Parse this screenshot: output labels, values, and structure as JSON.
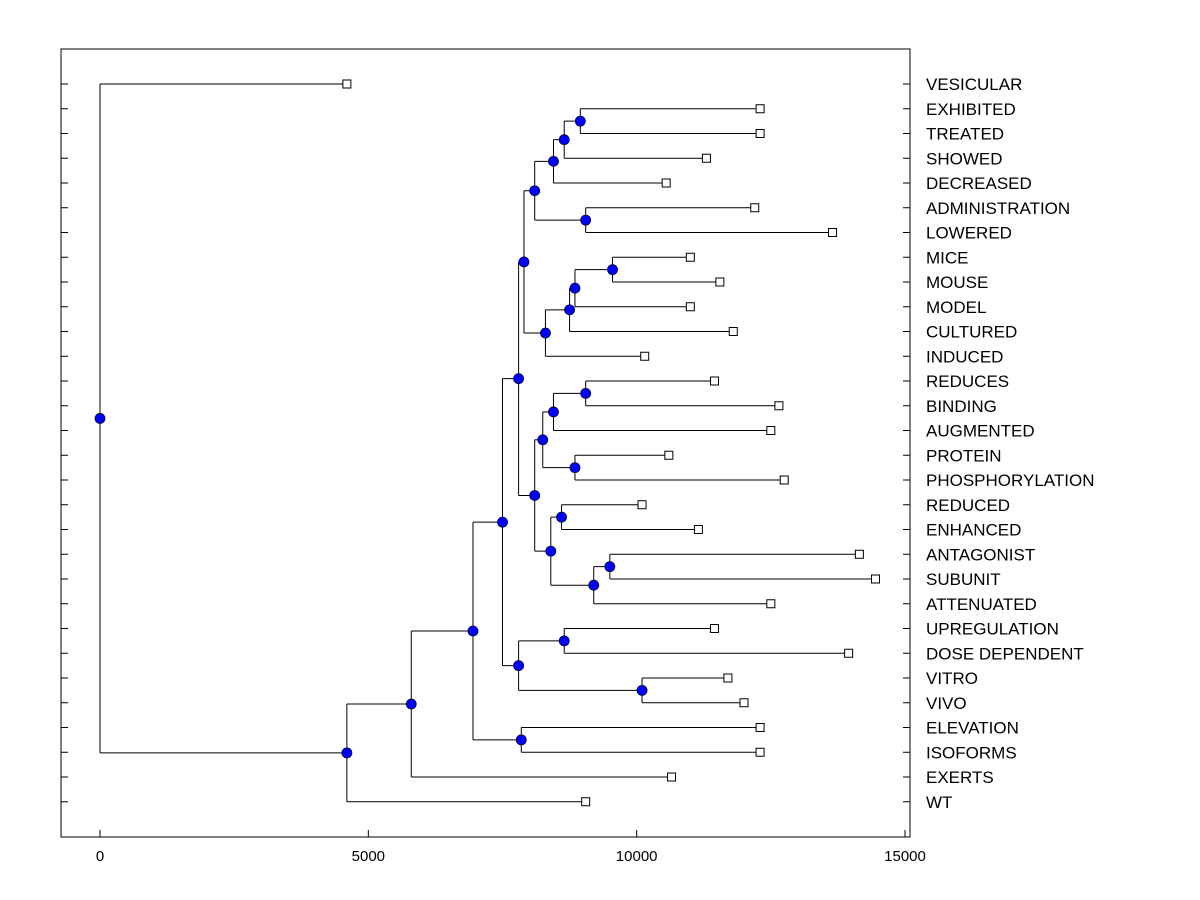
{
  "chart_data": {
    "type": "dendrogram",
    "orientation": "horizontal-left-root",
    "x_axis": {
      "range": [
        -700,
        15150
      ],
      "ticks": [
        0,
        5000,
        10000,
        15000
      ],
      "tick_labels": [
        "0",
        "5000",
        "10000",
        "15000"
      ]
    },
    "leaves": [
      {
        "label": "VESICULAR",
        "x": 4600
      },
      {
        "label": "EXHIBITED",
        "x": 12300
      },
      {
        "label": "TREATED",
        "x": 12300
      },
      {
        "label": "SHOWED",
        "x": 11300
      },
      {
        "label": "DECREASED",
        "x": 10550
      },
      {
        "label": "ADMINISTRATION",
        "x": 12200
      },
      {
        "label": "LOWERED",
        "x": 13650
      },
      {
        "label": "MICE",
        "x": 11000
      },
      {
        "label": "MOUSE",
        "x": 11550
      },
      {
        "label": "MODEL",
        "x": 11000
      },
      {
        "label": "CULTURED",
        "x": 11800
      },
      {
        "label": "INDUCED",
        "x": 10150
      },
      {
        "label": "REDUCES",
        "x": 11450
      },
      {
        "label": "BINDING",
        "x": 12650
      },
      {
        "label": "AUGMENTED",
        "x": 12500
      },
      {
        "label": "PROTEIN",
        "x": 10600
      },
      {
        "label": "PHOSPHORYLATION",
        "x": 12750
      },
      {
        "label": "REDUCED",
        "x": 10100
      },
      {
        "label": "ENHANCED",
        "x": 11150
      },
      {
        "label": "ANTAGONIST",
        "x": 14150
      },
      {
        "label": "SUBUNIT",
        "x": 14450
      },
      {
        "label": "ATTENUATED",
        "x": 12500
      },
      {
        "label": "UPREGULATION",
        "x": 11450
      },
      {
        "label": "DOSE DEPENDENT",
        "x": 13950
      },
      {
        "label": "VITRO",
        "x": 11700
      },
      {
        "label": "VIVO",
        "x": 12000
      },
      {
        "label": "ELEVATION",
        "x": 12300
      },
      {
        "label": "ISOFORMS",
        "x": 12300
      },
      {
        "label": "EXERTS",
        "x": 10650
      },
      {
        "label": "WT",
        "x": 9050
      }
    ],
    "merges": [
      {
        "id": "n_exh_tre",
        "x": 8950,
        "children": [
          "L:EXHIBITED",
          "L:TREATED"
        ]
      },
      {
        "id": "n_show",
        "x": 8650,
        "children": [
          "N:n_exh_tre",
          "L:SHOWED"
        ]
      },
      {
        "id": "n_decr",
        "x": 8450,
        "children": [
          "N:n_show",
          "L:DECREASED"
        ]
      },
      {
        "id": "n_adm_low",
        "x": 9050,
        "children": [
          "L:ADMINISTRATION",
          "L:LOWERED"
        ]
      },
      {
        "id": "n_grpA",
        "x": 8100,
        "children": [
          "N:n_decr",
          "N:n_adm_low"
        ]
      },
      {
        "id": "n_mice_mouse",
        "x": 9550,
        "children": [
          "L:MICE",
          "L:MOUSE"
        ]
      },
      {
        "id": "n_model",
        "x": 8850,
        "children": [
          "N:n_mice_mouse",
          "L:MODEL"
        ]
      },
      {
        "id": "n_cult",
        "x": 8750,
        "children": [
          "N:n_model",
          "L:CULTURED"
        ]
      },
      {
        "id": "n_induced",
        "x": 8300,
        "children": [
          "N:n_cult",
          "L:INDUCED"
        ]
      },
      {
        "id": "n_grpB",
        "x": 7900,
        "children": [
          "N:n_grpA",
          "N:n_induced"
        ]
      },
      {
        "id": "n_red_bind",
        "x": 9050,
        "children": [
          "L:REDUCES",
          "L:BINDING"
        ]
      },
      {
        "id": "n_aug",
        "x": 8450,
        "children": [
          "N:n_red_bind",
          "L:AUGMENTED"
        ]
      },
      {
        "id": "n_prot_phos",
        "x": 8850,
        "children": [
          "L:PROTEIN",
          "L:PHOSPHORYLATION"
        ]
      },
      {
        "id": "n_grpC",
        "x": 8250,
        "children": [
          "N:n_aug",
          "N:n_prot_phos"
        ]
      },
      {
        "id": "n_red_enh",
        "x": 8600,
        "children": [
          "L:REDUCED",
          "L:ENHANCED"
        ]
      },
      {
        "id": "n_ant_sub",
        "x": 9500,
        "children": [
          "L:ANTAGONIST",
          "L:SUBUNIT"
        ]
      },
      {
        "id": "n_atten",
        "x": 9200,
        "children": [
          "N:n_ant_sub",
          "L:ATTENUATED"
        ]
      },
      {
        "id": "n_grpD",
        "x": 8400,
        "children": [
          "N:n_red_enh",
          "N:n_atten"
        ]
      },
      {
        "id": "n_grpE",
        "x": 8100,
        "children": [
          "N:n_grpC",
          "N:n_grpD"
        ]
      },
      {
        "id": "n_grpF",
        "x": 7800,
        "children": [
          "N:n_grpB",
          "N:n_grpE"
        ]
      },
      {
        "id": "n_upr_dose",
        "x": 8650,
        "children": [
          "L:UPREGULATION",
          "L:DOSE DEPENDENT"
        ]
      },
      {
        "id": "n_vit_viv",
        "x": 10100,
        "children": [
          "L:VITRO",
          "L:VIVO"
        ]
      },
      {
        "id": "n_grpG",
        "x": 7800,
        "children": [
          "N:n_upr_dose",
          "N:n_vit_viv"
        ]
      },
      {
        "id": "n_grpH",
        "x": 7500,
        "children": [
          "N:n_grpF",
          "N:n_grpG"
        ]
      },
      {
        "id": "n_elev_iso",
        "x": 7850,
        "children": [
          "L:ELEVATION",
          "L:ISOFORMS"
        ]
      },
      {
        "id": "n_grpI",
        "x": 6950,
        "children": [
          "N:n_grpH",
          "N:n_elev_iso"
        ]
      },
      {
        "id": "n_grpJ",
        "x": 5800,
        "children": [
          "N:n_grpI",
          "L:EXERTS"
        ]
      },
      {
        "id": "n_grpK",
        "x": 4600,
        "children": [
          "N:n_grpJ",
          "L:WT"
        ]
      },
      {
        "id": "n_root",
        "x": 0,
        "children": [
          "L:VESICULAR",
          "N:n_grpK"
        ]
      }
    ],
    "colors": {
      "node_fill": "#0000ff",
      "line": "#000000",
      "leaf_fill": "#ffffff"
    }
  }
}
